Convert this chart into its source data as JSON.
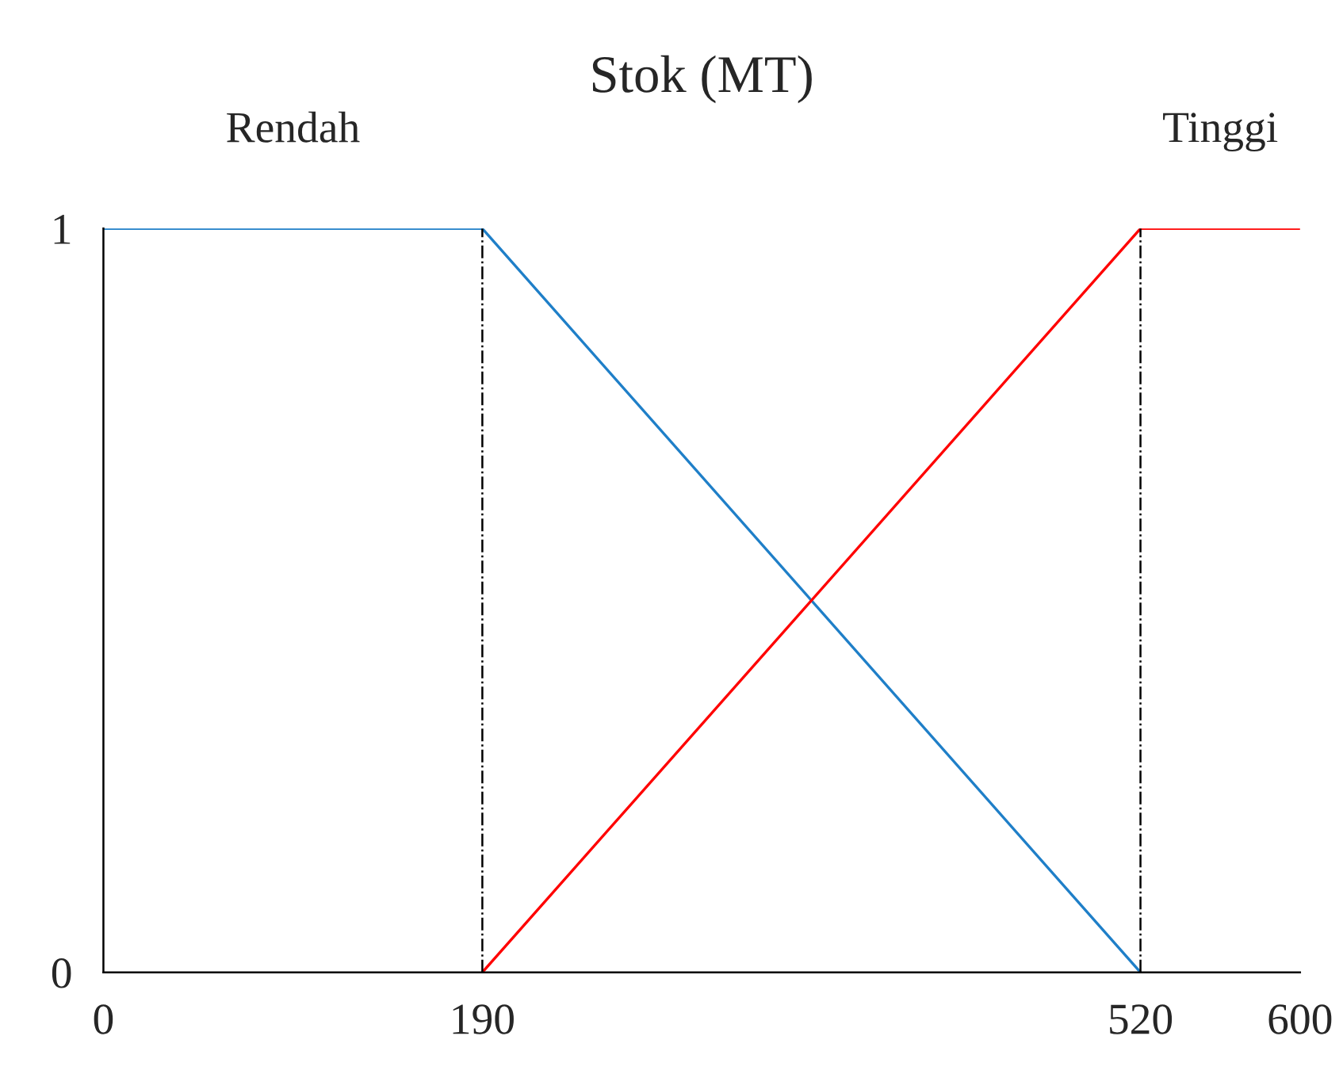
{
  "chart_data": {
    "type": "line",
    "title": "Stok (MT)",
    "series": [
      {
        "name": "Rendah",
        "color": "#1f7fc8",
        "x": [
          0,
          190,
          520
        ],
        "values": [
          1,
          1,
          0
        ]
      },
      {
        "name": "Tinggi",
        "color": "#ff0000",
        "x": [
          190,
          520,
          600
        ],
        "values": [
          0,
          1,
          1
        ]
      }
    ],
    "ref_lines": [
      {
        "axis": "x",
        "value": 190,
        "color": "#000000",
        "line_style": "dashdot"
      },
      {
        "axis": "x",
        "value": 520,
        "color": "#000000",
        "line_style": "dashdot"
      }
    ],
    "xlim": [
      0,
      600
    ],
    "xticks": [
      0,
      190,
      520,
      600
    ],
    "ylim": [
      0,
      1
    ],
    "yticks": [
      0,
      1
    ],
    "grid": false,
    "legend": false,
    "marker": "none",
    "line_style": "solid"
  }
}
